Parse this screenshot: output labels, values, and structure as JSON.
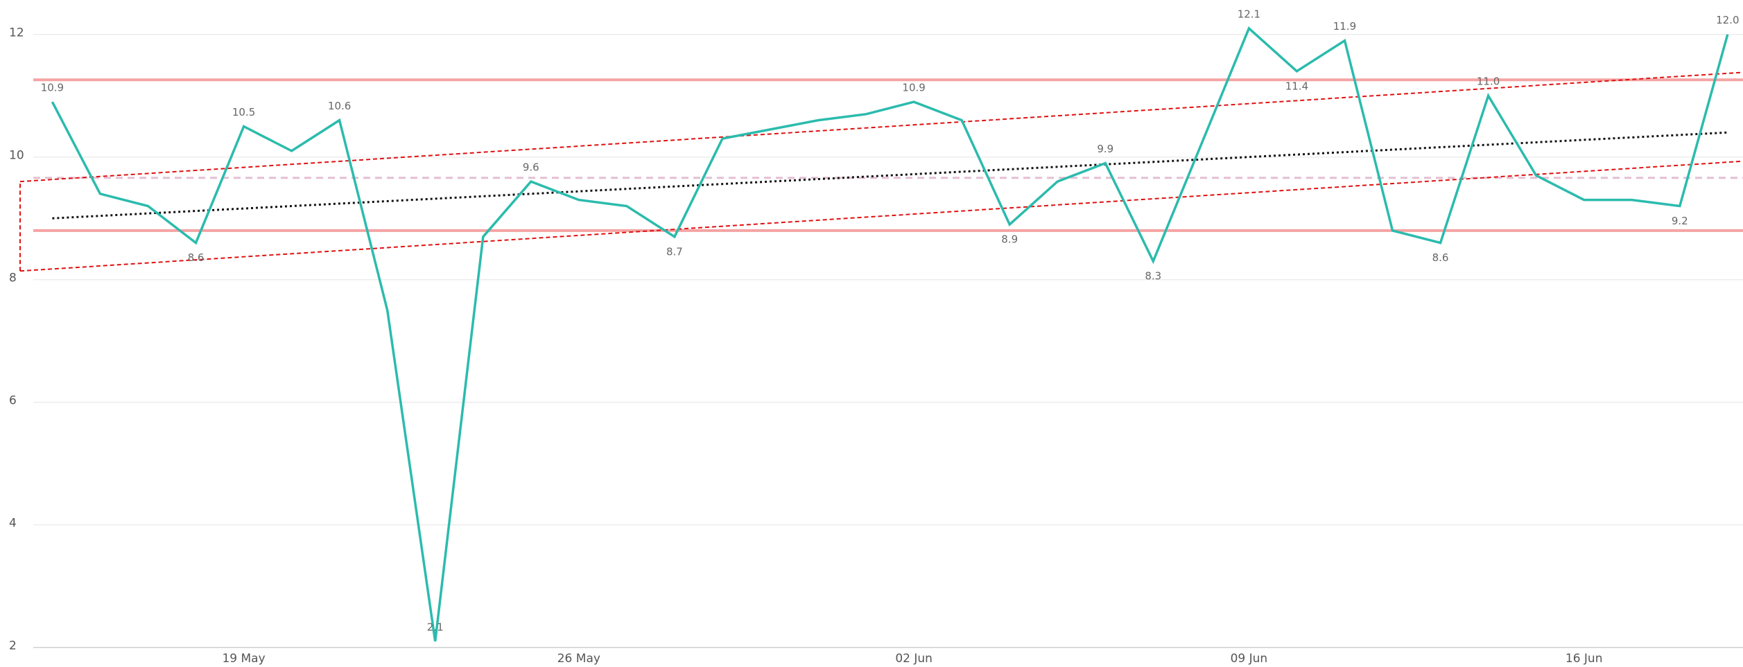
{
  "chart_data": {
    "type": "line",
    "categories": [
      null,
      null,
      null,
      null,
      "19 May",
      null,
      null,
      null,
      null,
      null,
      null,
      "26 May",
      null,
      null,
      null,
      null,
      null,
      null,
      "02 Jun",
      null,
      null,
      null,
      null,
      null,
      null,
      "09 Jun",
      null,
      null,
      null,
      null,
      null,
      null,
      "16 Jun",
      null,
      null,
      null
    ],
    "series": [
      {
        "color": "#2bbbad",
        "values": [
          10.9,
          9.4,
          9.2,
          8.6,
          10.5,
          10.1,
          10.6,
          7.5,
          2.1,
          8.7,
          9.6,
          9.3,
          9.2,
          8.7,
          10.3,
          10.45,
          10.6,
          10.7,
          10.9,
          10.6,
          8.9,
          9.6,
          9.9,
          8.3,
          10.2,
          12.1,
          11.4,
          11.9,
          8.8,
          8.6,
          11.0,
          9.7,
          9.3,
          9.3,
          9.2,
          12.0
        ],
        "value_labels": [
          "10.9",
          null,
          null,
          "8.6",
          "10.5",
          null,
          "10.6",
          null,
          "2.1",
          null,
          "9.6",
          null,
          null,
          "8.7",
          null,
          null,
          null,
          null,
          "10.9",
          null,
          "8.9",
          null,
          "9.9",
          "8.3",
          null,
          "12.1",
          "11.4",
          "11.9",
          null,
          "8.6",
          "11.0",
          null,
          null,
          null,
          "9.2",
          "12.0"
        ]
      }
    ],
    "ylim": [
      2,
      12.55
    ],
    "yticks": [
      2,
      4,
      6,
      8,
      10,
      12
    ],
    "grid": true,
    "reference_lines": [
      {
        "value": 11.26,
        "style": "solid",
        "color": "#f5a3a3"
      },
      {
        "value": 8.8,
        "style": "solid",
        "color": "#f5a3a3"
      },
      {
        "value": 9.66,
        "style": "dashed",
        "color": "#e3bfd2"
      }
    ],
    "trend": {
      "values": [
        9.0,
        10.4
      ],
      "color": "#111111"
    },
    "channel": {
      "upper": [
        9.6,
        11.38
      ],
      "lower": [
        8.14,
        9.93
      ],
      "color": "#e01010"
    }
  }
}
